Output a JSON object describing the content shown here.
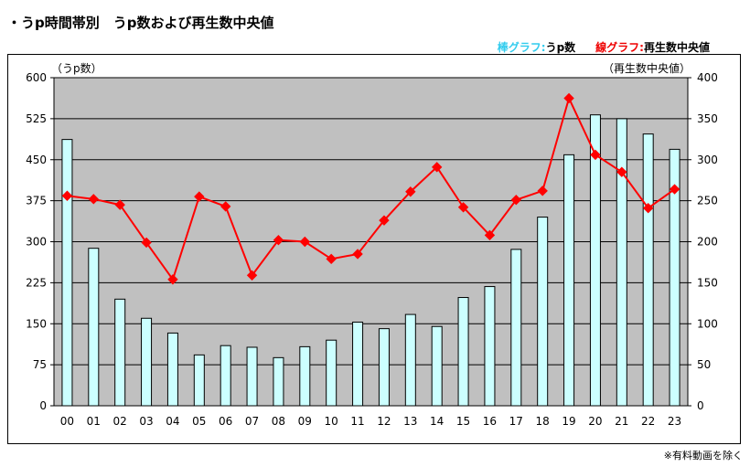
{
  "title": "・うp時間帯別　うp数および再生数中央値",
  "legend": {
    "bar_label": "棒グラフ:",
    "bar_series": "うp数",
    "line_label": "線グラフ:",
    "line_series": "再生数中央値",
    "bar_label_color": "#33ccee",
    "line_label_color": "#ee0000"
  },
  "note": "※有料動画を除く",
  "colors": {
    "plot_bg": "#c0c0c0",
    "bar_fill": "#ccffff",
    "bar_stroke": "#000000",
    "line": "#ff0000",
    "marker": "#ff0000",
    "grid": "#000000"
  },
  "chart_data": {
    "type": "bar",
    "categories": [
      "00",
      "01",
      "02",
      "03",
      "04",
      "05",
      "06",
      "07",
      "08",
      "09",
      "10",
      "11",
      "12",
      "13",
      "14",
      "15",
      "16",
      "17",
      "18",
      "19",
      "20",
      "21",
      "22",
      "23"
    ],
    "series": [
      {
        "name": "うp数",
        "type": "bar",
        "axis": "left",
        "values": [
          487,
          288,
          195,
          160,
          133,
          93,
          110,
          107,
          88,
          108,
          120,
          153,
          141,
          167,
          145,
          198,
          218,
          286,
          345,
          459,
          532,
          525,
          497,
          469
        ]
      },
      {
        "name": "再生数中央値",
        "type": "line",
        "axis": "right",
        "values": [
          256,
          252,
          245,
          199,
          154,
          255,
          243,
          159,
          202,
          200,
          179,
          185,
          226,
          261,
          291,
          242,
          208,
          251,
          262,
          375,
          306,
          285,
          241,
          264
        ]
      }
    ],
    "ylabel": "（うp数）",
    "y2label": "（再生数中央値）",
    "ylim": [
      0,
      600
    ],
    "y2lim": [
      0,
      400
    ],
    "yticks": [
      "0",
      "75",
      "150",
      "225",
      "300",
      "375",
      "450",
      "525",
      "600"
    ],
    "y2ticks": [
      "0",
      "50",
      "100",
      "150",
      "200",
      "250",
      "300",
      "350",
      "400"
    ],
    "grid": true
  }
}
